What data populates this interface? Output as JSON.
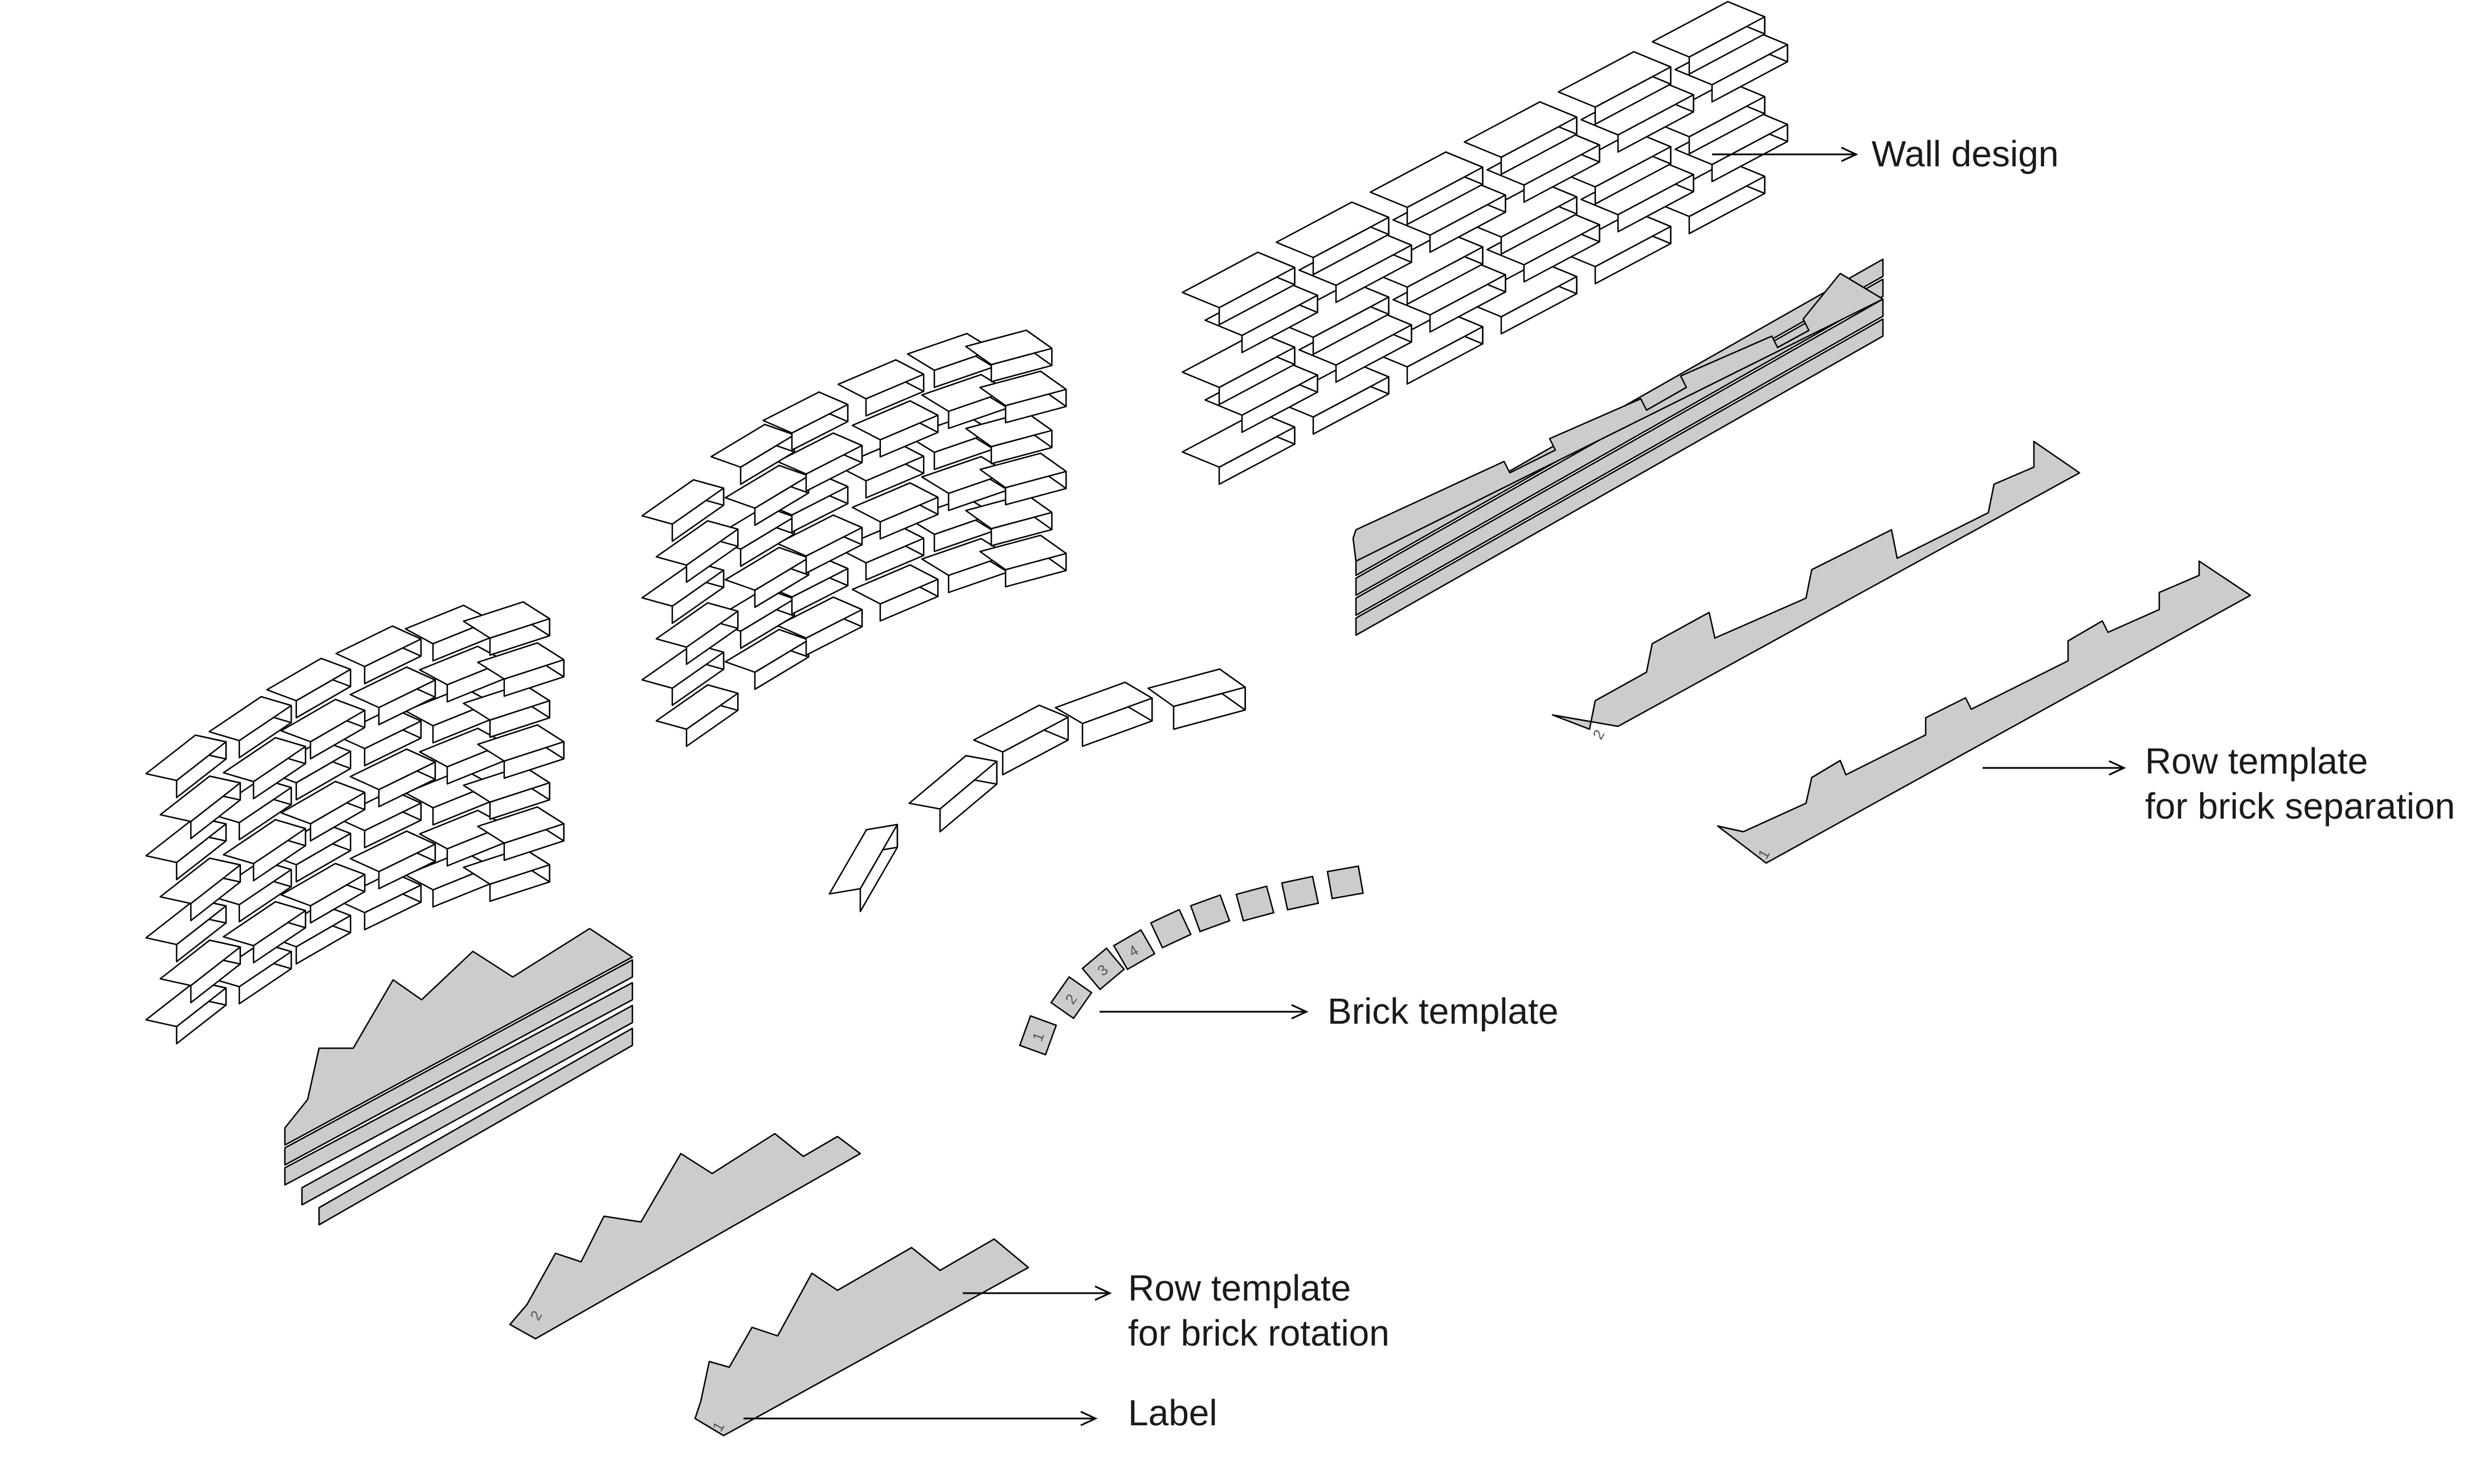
{
  "labels": {
    "wall_design": "Wall design",
    "row_template_separation_line1": "Row template",
    "row_template_separation_line2": "for brick separation",
    "brick_template": "Brick template",
    "row_template_rotation_line1": "Row template",
    "row_template_rotation_line2": "for brick rotation",
    "label": "Label"
  },
  "template_numbers": {
    "separation_upper": "2",
    "separation_lower": "1",
    "rotation_upper": "2",
    "rotation_lower": "1",
    "bricks": [
      "1",
      "2",
      "3",
      "4"
    ]
  },
  "colors": {
    "template_fill": "#cccccc",
    "brick_top": "#ffffff",
    "line": "#000000"
  }
}
